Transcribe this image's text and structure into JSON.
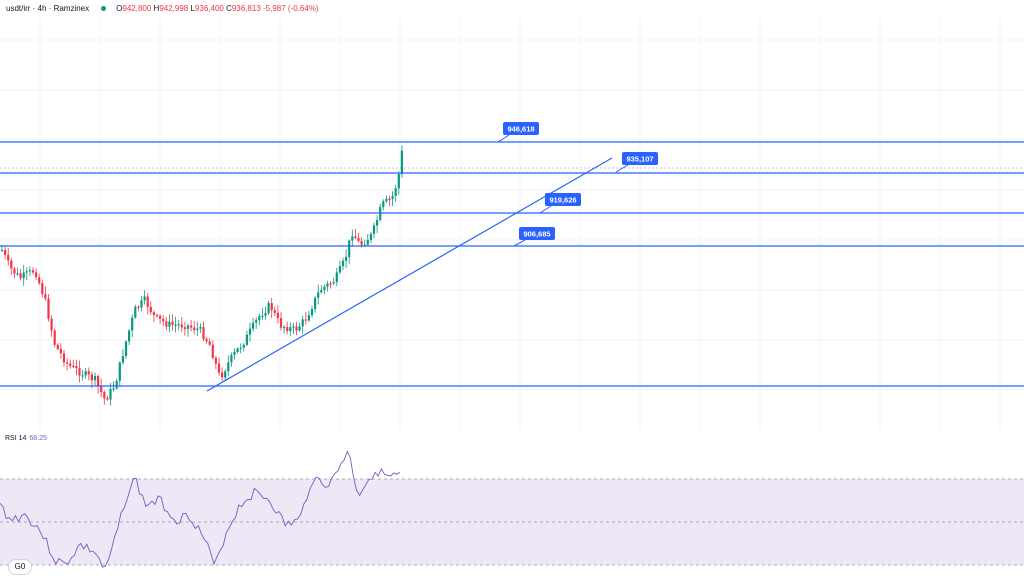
{
  "legend": {
    "symbol": "usdt/irr · 4h · Ramzinex",
    "open_label": "O",
    "open": "942,800",
    "high_label": "H",
    "high": "942,998",
    "low_label": "L",
    "low": "936,400",
    "close_label": "C",
    "close": "936,813",
    "change": "-5,987 (-0.64%)"
  },
  "rsi_legend": {
    "name": "RSI 14",
    "value": "68.25"
  },
  "watermark": "G0",
  "colors": {
    "up": "#089981",
    "down": "#f23645",
    "level_line": "#2962ff",
    "rsi_line": "#7e57c2",
    "rsi_band": "#ede7f6",
    "grid": "#f0f3fa"
  },
  "chart_data": {
    "type": "candlestick",
    "y_axis": "price (IRR)",
    "levels": [
      {
        "label": "946,618"
      },
      {
        "label": "935,107"
      },
      {
        "label": "919,626"
      },
      {
        "label": "906,685"
      }
    ],
    "rsi": {
      "period": 14,
      "last": 68.25,
      "upper_band": 70,
      "mid": 50,
      "lower_band": 30
    }
  }
}
